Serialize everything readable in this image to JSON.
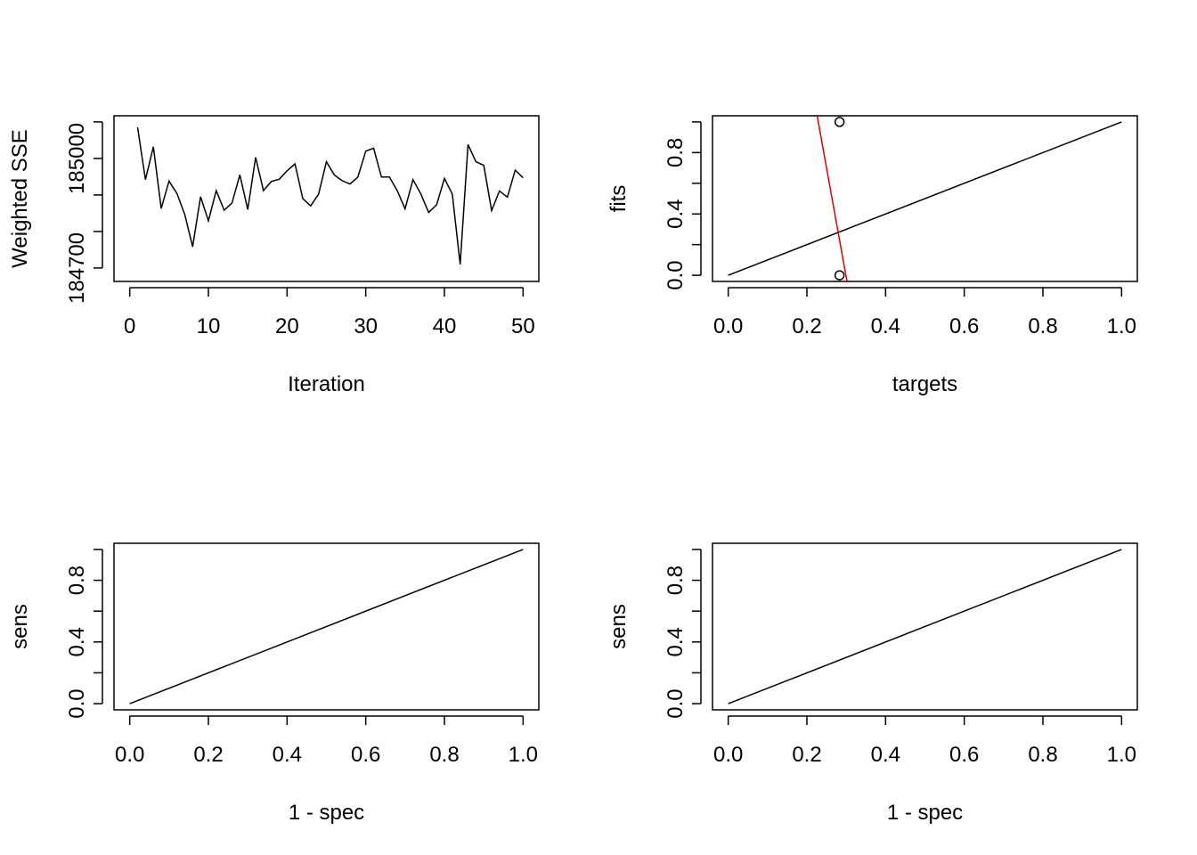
{
  "chart_data": [
    {
      "type": "line",
      "xlabel": "Iteration",
      "ylabel": "Weighted SSE",
      "xlim": [
        0,
        50
      ],
      "ylim": [
        184680,
        185100
      ],
      "xticks": [
        "0",
        "10",
        "20",
        "30",
        "40",
        "50"
      ],
      "yticks": [
        "184700",
        "185000"
      ],
      "grid": false,
      "series": [
        {
          "color": "#000000",
          "x": [
            1,
            2,
            3,
            4,
            5,
            6,
            7,
            8,
            9,
            10,
            11,
            12,
            13,
            14,
            15,
            16,
            17,
            18,
            19,
            20,
            21,
            22,
            23,
            24,
            25,
            26,
            27,
            28,
            29,
            30,
            31,
            32,
            33,
            34,
            35,
            36,
            37,
            38,
            39,
            40,
            41,
            42,
            43,
            44,
            45,
            46,
            47,
            48,
            49,
            50
          ],
          "y": [
            185085,
            184942,
            185032,
            184863,
            184938,
            184904,
            184846,
            184758,
            184895,
            184829,
            184912,
            184858,
            184878,
            184955,
            184860,
            185003,
            184912,
            184937,
            184943,
            184966,
            184985,
            184890,
            184870,
            184902,
            184991,
            184955,
            184939,
            184930,
            184949,
            185020,
            185028,
            184949,
            184949,
            184912,
            184862,
            184942,
            184903,
            184852,
            184873,
            184945,
            184903,
            184710,
            185038,
            184991,
            184981,
            184857,
            184911,
            184894,
            184968,
            184947
          ]
        }
      ]
    },
    {
      "type": "scatter",
      "xlabel": "targets",
      "ylabel": "fits",
      "xlim": [
        0,
        1
      ],
      "ylim": [
        0,
        1
      ],
      "xticks": [
        "0.0",
        "0.2",
        "0.4",
        "0.6",
        "0.8",
        "1.0"
      ],
      "yticks": [
        "0.0",
        "0.4",
        "0.8"
      ],
      "grid": false,
      "points": [
        {
          "x": 0.283,
          "y": 1.0
        },
        {
          "x": 0.283,
          "y": 0.0
        }
      ],
      "lines": [
        {
          "color": "#000000",
          "x": [
            0,
            1
          ],
          "y": [
            0,
            1
          ]
        },
        {
          "color": "#e00000",
          "x": [
            0.226,
            0.302
          ],
          "y": [
            1.04,
            -0.04
          ]
        }
      ]
    },
    {
      "type": "line",
      "xlabel": "1 - spec",
      "ylabel": "sens",
      "xlim": [
        0,
        1
      ],
      "ylim": [
        0,
        1
      ],
      "xticks": [
        "0.0",
        "0.2",
        "0.4",
        "0.6",
        "0.8",
        "1.0"
      ],
      "yticks": [
        "0.0",
        "0.4",
        "0.8"
      ],
      "grid": false,
      "series": [
        {
          "color": "#000000",
          "x": [
            0,
            1
          ],
          "y": [
            0,
            1
          ]
        }
      ]
    },
    {
      "type": "line",
      "xlabel": "1 - spec",
      "ylabel": "sens",
      "xlim": [
        0,
        1
      ],
      "ylim": [
        0,
        1
      ],
      "xticks": [
        "0.0",
        "0.2",
        "0.4",
        "0.6",
        "0.8",
        "1.0"
      ],
      "yticks": [
        "0.0",
        "0.4",
        "0.8"
      ],
      "grid": false,
      "series": [
        {
          "color": "#000000",
          "x": [
            0,
            1
          ],
          "y": [
            0,
            1
          ]
        }
      ]
    }
  ]
}
